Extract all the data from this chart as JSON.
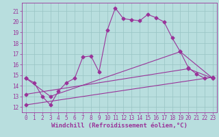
{
  "background_color": "#b8dede",
  "grid_color": "#98c4c4",
  "line_color": "#993399",
  "marker_color": "#993399",
  "series1_x": [
    0,
    1,
    2,
    3,
    4,
    5,
    6,
    7,
    8,
    9,
    10,
    11,
    12,
    13,
    14,
    15,
    16,
    17,
    18,
    19,
    20,
    21,
    22,
    23
  ],
  "series1_y": [
    14.7,
    14.3,
    13.0,
    12.2,
    13.5,
    14.3,
    14.7,
    16.7,
    16.8,
    15.3,
    19.2,
    21.3,
    20.3,
    20.2,
    20.1,
    20.7,
    20.4,
    20.0,
    18.5,
    17.2,
    15.7,
    15.1,
    14.7,
    14.8
  ],
  "series2_x": [
    0,
    3,
    19,
    23
  ],
  "series2_y": [
    14.7,
    13.0,
    17.2,
    14.7
  ],
  "series3_x": [
    0,
    20,
    23
  ],
  "series3_y": [
    13.2,
    15.6,
    14.7
  ],
  "series4_x": [
    0,
    23
  ],
  "series4_y": [
    12.2,
    14.8
  ],
  "xlim": [
    -0.5,
    23.5
  ],
  "ylim": [
    11.5,
    21.8
  ],
  "xticks": [
    0,
    1,
    2,
    3,
    4,
    5,
    6,
    7,
    8,
    9,
    10,
    11,
    12,
    13,
    14,
    15,
    16,
    17,
    18,
    19,
    20,
    21,
    22,
    23
  ],
  "yticks": [
    12,
    13,
    14,
    15,
    16,
    17,
    18,
    19,
    20,
    21
  ],
  "xlabel": "Windchill (Refroidissement éolien,°C)",
  "xlabel_fontsize": 6.5,
  "tick_fontsize": 5.5,
  "line_width": 0.8,
  "marker_size": 2.5
}
